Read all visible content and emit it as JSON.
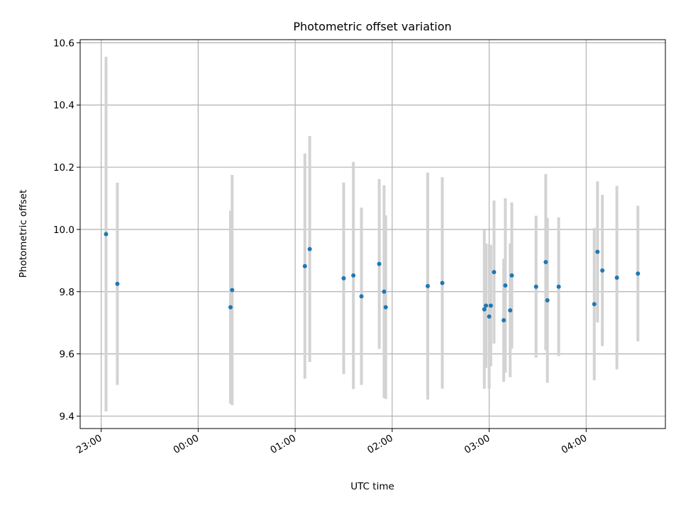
{
  "chart_data": {
    "type": "scatter",
    "title": "Photometric offset variation",
    "xlabel": "UTC time",
    "ylabel": "Photometric offset",
    "x_unit": "minutes",
    "xlim": [
      "22:47",
      "04:49"
    ],
    "ylim": [
      9.36,
      10.61
    ],
    "x_ticks": [
      "23:00",
      "00:00",
      "01:00",
      "02:00",
      "03:00",
      "04:00"
    ],
    "y_ticks": [
      "9.4",
      "9.6",
      "9.8",
      "10.0",
      "10.2",
      "10.4",
      "10.6"
    ],
    "grid": true,
    "colors": {
      "point": "#1f77b4",
      "errorbar": "#d3d3d3",
      "grid": "#b0b0b0"
    },
    "series": [
      {
        "points": [
          {
            "x": "23:03",
            "y": 9.985,
            "err": 0.57
          },
          {
            "x": "23:10",
            "y": 9.825,
            "err": 0.325
          },
          {
            "x": "00:20",
            "y": 9.75,
            "err": 0.31
          },
          {
            "x": "00:21",
            "y": 9.805,
            "err": 0.37
          },
          {
            "x": "01:06",
            "y": 9.882,
            "err": 0.362
          },
          {
            "x": "01:09",
            "y": 9.937,
            "err": 0.363
          },
          {
            "x": "01:30",
            "y": 9.843,
            "err": 0.308
          },
          {
            "x": "01:36",
            "y": 9.852,
            "err": 0.365
          },
          {
            "x": "01:41",
            "y": 9.785,
            "err": 0.285
          },
          {
            "x": "01:52",
            "y": 9.889,
            "err": 0.273
          },
          {
            "x": "01:55",
            "y": 9.8,
            "err": 0.342
          },
          {
            "x": "01:56",
            "y": 9.75,
            "err": 0.295
          },
          {
            "x": "02:22",
            "y": 9.818,
            "err": 0.365
          },
          {
            "x": "02:31",
            "y": 9.828,
            "err": 0.34
          },
          {
            "x": "02:57",
            "y": 9.743,
            "err": 0.255
          },
          {
            "x": "02:58",
            "y": 9.755,
            "err": 0.2
          },
          {
            "x": "03:00",
            "y": 9.72,
            "err": 0.232
          },
          {
            "x": "03:01",
            "y": 9.755,
            "err": 0.195
          },
          {
            "x": "03:03",
            "y": 9.863,
            "err": 0.23
          },
          {
            "x": "03:09",
            "y": 9.708,
            "err": 0.198
          },
          {
            "x": "03:10",
            "y": 9.82,
            "err": 0.28
          },
          {
            "x": "03:13",
            "y": 9.74,
            "err": 0.215
          },
          {
            "x": "03:14",
            "y": 9.852,
            "err": 0.235
          },
          {
            "x": "03:29",
            "y": 9.816,
            "err": 0.228
          },
          {
            "x": "03:35",
            "y": 9.895,
            "err": 0.283
          },
          {
            "x": "03:36",
            "y": 9.772,
            "err": 0.265
          },
          {
            "x": "03:43",
            "y": 9.816,
            "err": 0.223
          },
          {
            "x": "04:05",
            "y": 9.76,
            "err": 0.245
          },
          {
            "x": "04:07",
            "y": 9.928,
            "err": 0.227
          },
          {
            "x": "04:10",
            "y": 9.868,
            "err": 0.243
          },
          {
            "x": "04:19",
            "y": 9.845,
            "err": 0.295
          },
          {
            "x": "04:32",
            "y": 9.858,
            "err": 0.218
          }
        ]
      }
    ]
  }
}
